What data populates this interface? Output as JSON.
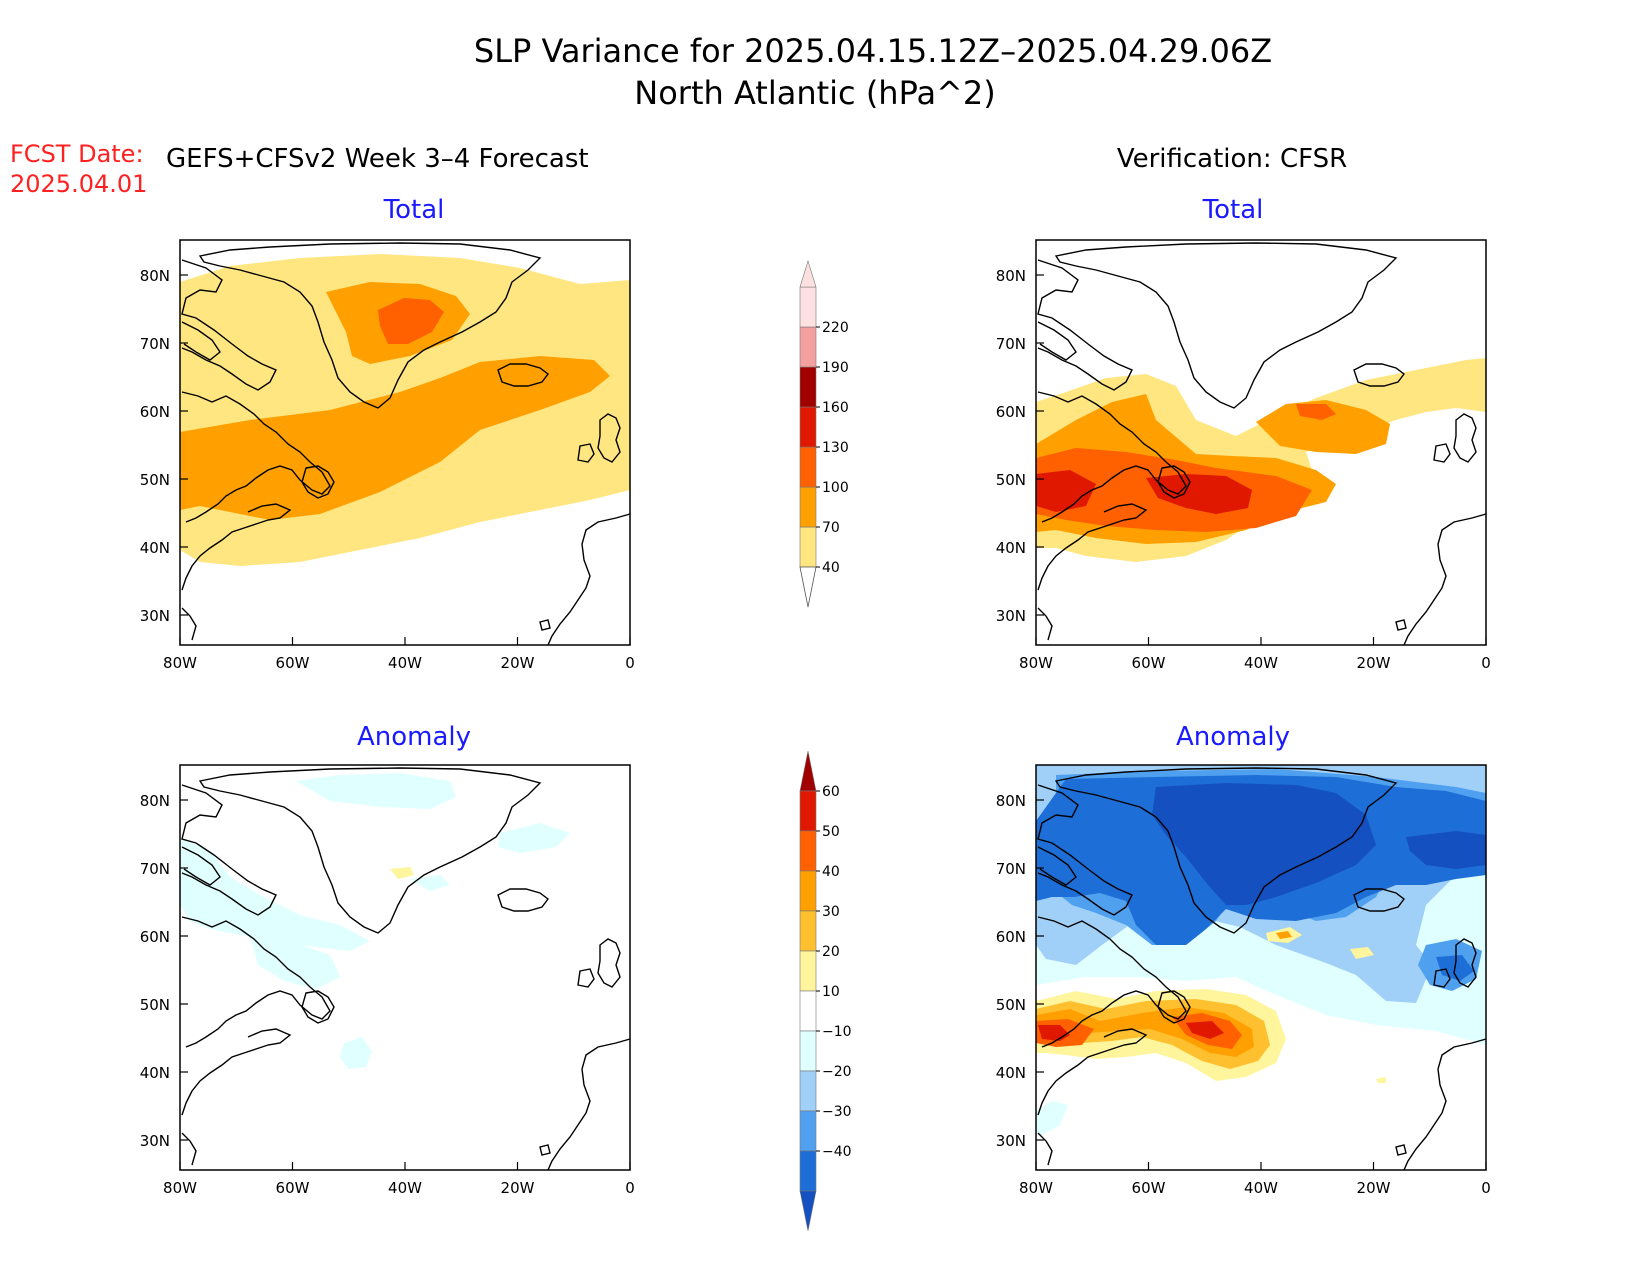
{
  "title": {
    "line1": "SLP Variance for 2025.04.15.12Z–2025.04.29.06Z",
    "line2": "North Atlantic (hPa^2)"
  },
  "forecast": {
    "fcst_label": "FCST Date:",
    "fcst_date": "2025.04.01",
    "header": "GEFS+CFSv2 Week 3–4 Forecast"
  },
  "verification": {
    "header": "Verification: CFSR"
  },
  "panels": {
    "fc_total": "Total",
    "fc_anom": "Anomaly",
    "vf_total": "Total",
    "vf_anom": "Anomaly"
  },
  "axes": {
    "lon_ticks": [
      "80W",
      "60W",
      "40W",
      "20W",
      "0"
    ],
    "lat_ticks": [
      "80N",
      "70N",
      "60N",
      "50N",
      "40N",
      "30N"
    ]
  },
  "colorbar_total": {
    "labels": [
      "40",
      "70",
      "100",
      "130",
      "160",
      "190",
      "220"
    ],
    "colors": [
      "#ffe680",
      "#ffa000",
      "#ff6000",
      "#e01800",
      "#a00000",
      "#f5a0a0",
      "#fde0e0"
    ]
  },
  "colorbar_anomaly": {
    "labels": [
      "60",
      "50",
      "40",
      "30",
      "20",
      "10",
      "−10",
      "−20",
      "−30",
      "−40"
    ],
    "colors": [
      "#a00000",
      "#e01800",
      "#ff6000",
      "#ffa000",
      "#ffc030",
      "#fff59c",
      "#ffffff",
      "#e0ffff",
      "#a0d0f8",
      "#50a0f0",
      "#1e6ed8",
      "#1450c0"
    ]
  },
  "colors": {
    "panel_title": "#1a1aff",
    "fcst_text": "#ff2020"
  }
}
